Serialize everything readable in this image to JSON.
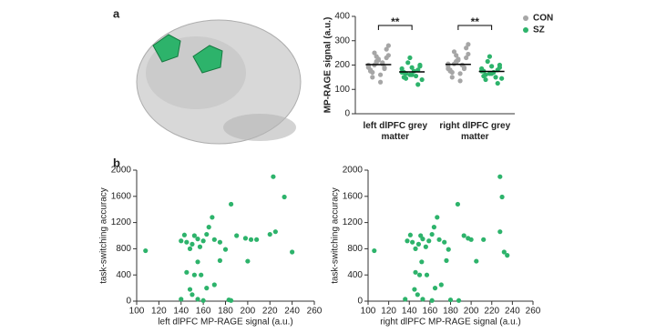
{
  "panel_labels": [
    "a",
    "b"
  ],
  "chart_data": [
    {
      "type": "strip",
      "ylabel": "MP-RAGE signal (a.u.)",
      "categories": [
        "left dlPFC grey matter",
        "right dlPFC grey matter"
      ],
      "ylim": [
        0,
        400
      ],
      "yticks": [
        0,
        100,
        200,
        300,
        400
      ],
      "annotations": [
        "**",
        "**"
      ],
      "legend": "upper right",
      "series": [
        {
          "name": "CON",
          "color": "#a6a6a6",
          "values": [
            [
              200,
              210,
              190,
              180,
              220,
              230,
              170,
              160,
              240,
              250,
              205,
              195,
              215,
              185,
              175,
              225,
              265,
              150,
              130,
              280,
              200,
              210,
              190,
              235
            ],
            [
              205,
              215,
              185,
              180,
              225,
              230,
              170,
              165,
              245,
              255,
              200,
              195,
              210,
              190,
              175,
              220,
              270,
              150,
              135,
              285,
              205,
              200,
              185,
              240
            ]
          ],
          "means": [
            202,
            203
          ]
        },
        {
          "name": "SZ",
          "color": "#2db36b",
          "values": [
            [
              170,
              160,
              180,
              150,
              190,
              200,
              165,
              175,
              140,
              210,
              155,
              185,
              230,
              120,
              170,
              160,
              195,
              145
            ],
            [
              175,
              165,
              180,
              155,
              195,
              200,
              160,
              170,
              145,
              215,
              150,
              185,
              235,
              125,
              175,
              165,
              190,
              140
            ]
          ],
          "means": [
            172,
            174
          ]
        }
      ]
    },
    {
      "type": "scatter",
      "xlabel": "left dlPFC MP-RAGE signal (a.u.)",
      "ylabel": "task-switching accuracy",
      "xlim": [
        100,
        260
      ],
      "xticks": [
        100,
        120,
        140,
        160,
        180,
        200,
        220,
        240,
        260
      ],
      "ylim": [
        0,
        2000
      ],
      "yticks": [
        0,
        400,
        800,
        1200,
        1600,
        2000
      ],
      "color": "#2db36b",
      "x": [
        108,
        140,
        143,
        145,
        148,
        150,
        152,
        155,
        157,
        160,
        163,
        165,
        168,
        170,
        175,
        180,
        185,
        190,
        145,
        150,
        152,
        155,
        158,
        160,
        163,
        148,
        170,
        175,
        183,
        185,
        200,
        198,
        203,
        208,
        220,
        223,
        225,
        233,
        240,
        140,
        155
      ],
      "y": [
        770,
        920,
        1010,
        900,
        800,
        870,
        1000,
        950,
        830,
        920,
        1020,
        1130,
        1280,
        940,
        900,
        790,
        1480,
        1000,
        440,
        100,
        400,
        30,
        400,
        10,
        200,
        180,
        250,
        620,
        20,
        10,
        610,
        960,
        940,
        940,
        1020,
        1900,
        1060,
        1590,
        750,
        30,
        600
      ]
    },
    {
      "type": "scatter",
      "xlabel": "right dlPFC MP-RAGE signal (a.u.)",
      "ylabel": "task-switching accuracy",
      "xlim": [
        100,
        260
      ],
      "xticks": [
        100,
        120,
        140,
        160,
        180,
        200,
        220,
        240,
        260
      ],
      "ylim": [
        0,
        2000
      ],
      "yticks": [
        0,
        400,
        800,
        1200,
        1600,
        2000
      ],
      "color": "#2db36b",
      "x": [
        106,
        138,
        141,
        143,
        146,
        149,
        151,
        153,
        156,
        159,
        162,
        164,
        167,
        169,
        174,
        178,
        187,
        193,
        146,
        148,
        150,
        153,
        157,
        162,
        165,
        145,
        171,
        176,
        180,
        188,
        205,
        197,
        200,
        212,
        228,
        228,
        230,
        232,
        235,
        136,
        152
      ],
      "y": [
        770,
        920,
        1010,
        900,
        800,
        870,
        1000,
        950,
        830,
        920,
        1020,
        1130,
        1280,
        940,
        900,
        790,
        1480,
        1000,
        440,
        100,
        400,
        30,
        400,
        10,
        200,
        180,
        250,
        620,
        20,
        10,
        610,
        960,
        940,
        940,
        1060,
        1900,
        1590,
        750,
        700,
        30,
        600
      ]
    }
  ]
}
